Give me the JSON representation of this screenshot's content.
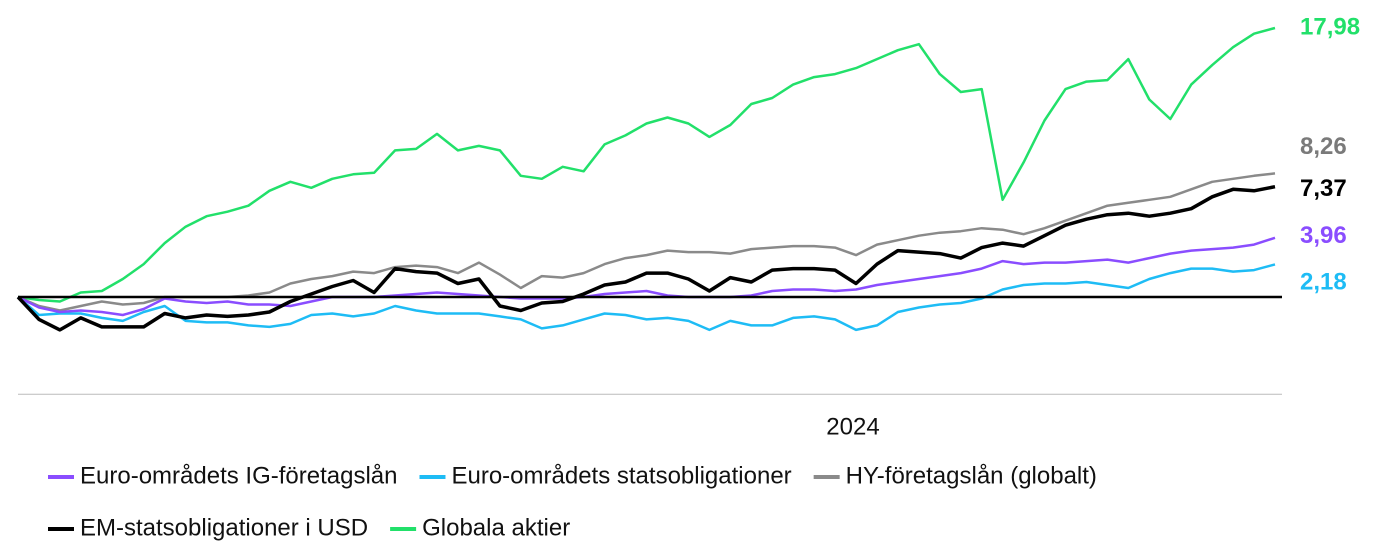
{
  "chart_data": {
    "type": "line",
    "categories": [
      null,
      null,
      null,
      null,
      null,
      null,
      null,
      null,
      null,
      null,
      null,
      null,
      null,
      null,
      null,
      null,
      null,
      null,
      null,
      null,
      null,
      null,
      null,
      null,
      null,
      null,
      null,
      null,
      null,
      null,
      null,
      null,
      null,
      null,
      null,
      null,
      null,
      null,
      null,
      null,
      "2024",
      null,
      null,
      null,
      null,
      null,
      null,
      null,
      null,
      null,
      null,
      null,
      null,
      null,
      null,
      null,
      null,
      null,
      null,
      null,
      null
    ],
    "ylim": [
      -6.5,
      19
    ],
    "series": [
      {
        "name": "Euro-områdets IG-företagslån",
        "color": "#8a4dff",
        "values": [
          0,
          -0.7,
          -1.0,
          -0.9,
          -1.0,
          -1.2,
          -0.8,
          -0.1,
          -0.3,
          -0.4,
          -0.3,
          -0.5,
          -0.5,
          -0.6,
          -0.3,
          0.0,
          0.0,
          0.0,
          0.1,
          0.2,
          0.3,
          0.2,
          0.1,
          0.0,
          -0.1,
          -0.1,
          -0.1,
          0.0,
          0.2,
          0.3,
          0.4,
          0.1,
          0.0,
          0.0,
          0.0,
          0.1,
          0.4,
          0.5,
          0.5,
          0.4,
          0.5,
          0.8,
          1.0,
          1.2,
          1.4,
          1.6,
          1.9,
          2.4,
          2.2,
          2.3,
          2.3,
          2.4,
          2.5,
          2.3,
          2.6,
          2.9,
          3.1,
          3.2,
          3.3,
          3.5,
          3.96
        ],
        "value_labels": [
          null,
          null,
          null,
          null,
          null,
          null,
          null,
          null,
          null,
          null,
          null,
          null,
          null,
          null,
          null,
          null,
          null,
          null,
          null,
          null,
          null,
          null,
          null,
          null,
          null,
          null,
          null,
          null,
          null,
          null,
          null,
          null,
          null,
          null,
          null,
          null,
          null,
          null,
          null,
          null,
          null,
          null,
          null,
          null,
          null,
          null,
          null,
          null,
          null,
          null,
          null,
          null,
          null,
          null,
          null,
          null,
          null,
          null,
          null,
          null,
          "3,96"
        ]
      },
      {
        "name": "Euro-områdets statsobligationer",
        "color": "#1ebcf5",
        "values": [
          0,
          -1.2,
          -1.1,
          -1.1,
          -1.4,
          -1.6,
          -1.0,
          -0.6,
          -1.6,
          -1.7,
          -1.7,
          -1.9,
          -2.0,
          -1.8,
          -1.2,
          -1.1,
          -1.3,
          -1.1,
          -0.6,
          -0.9,
          -1.1,
          -1.1,
          -1.1,
          -1.3,
          -1.5,
          -2.1,
          -1.9,
          -1.5,
          -1.1,
          -1.2,
          -1.5,
          -1.4,
          -1.6,
          -2.2,
          -1.6,
          -1.9,
          -1.9,
          -1.4,
          -1.3,
          -1.5,
          -2.2,
          -1.9,
          -1.0,
          -0.7,
          -0.5,
          -0.4,
          -0.1,
          0.5,
          0.8,
          0.9,
          0.9,
          1.0,
          0.8,
          0.6,
          1.2,
          1.6,
          1.9,
          1.9,
          1.7,
          1.8,
          2.18
        ],
        "value_labels": [
          null,
          null,
          null,
          null,
          null,
          null,
          null,
          null,
          null,
          null,
          null,
          null,
          null,
          null,
          null,
          null,
          null,
          null,
          null,
          null,
          null,
          null,
          null,
          null,
          null,
          null,
          null,
          null,
          null,
          null,
          null,
          null,
          null,
          null,
          null,
          null,
          null,
          null,
          null,
          null,
          null,
          null,
          null,
          null,
          null,
          null,
          null,
          null,
          null,
          null,
          null,
          null,
          null,
          null,
          null,
          null,
          null,
          null,
          null,
          null,
          "2,18"
        ]
      },
      {
        "name": "HY-företagslån (globalt)",
        "color": "#8a8a8a",
        "values": [
          0,
          -0.6,
          -0.9,
          -0.6,
          -0.3,
          -0.5,
          -0.4,
          0,
          0,
          0,
          0,
          0.1,
          0.3,
          0.9,
          1.2,
          1.4,
          1.7,
          1.6,
          2.0,
          2.1,
          2.0,
          1.6,
          2.3,
          1.5,
          0.6,
          1.4,
          1.3,
          1.6,
          2.2,
          2.6,
          2.8,
          3.1,
          3.0,
          3.0,
          2.9,
          3.2,
          3.3,
          3.4,
          3.4,
          3.3,
          2.8,
          3.5,
          3.8,
          4.1,
          4.3,
          4.4,
          4.6,
          4.5,
          4.2,
          4.6,
          5.1,
          5.6,
          6.1,
          6.3,
          6.5,
          6.7,
          7.2,
          7.7,
          7.9,
          8.1,
          8.26
        ],
        "value_labels": [
          null,
          null,
          null,
          null,
          null,
          null,
          null,
          null,
          null,
          null,
          null,
          null,
          null,
          null,
          null,
          null,
          null,
          null,
          null,
          null,
          null,
          null,
          null,
          null,
          null,
          null,
          null,
          null,
          null,
          null,
          null,
          null,
          null,
          null,
          null,
          null,
          null,
          null,
          null,
          null,
          null,
          null,
          null,
          null,
          null,
          null,
          null,
          null,
          null,
          null,
          null,
          null,
          null,
          null,
          null,
          null,
          null,
          null,
          null,
          null,
          "8,26"
        ]
      },
      {
        "name": "EM-statsobligationer i USD",
        "color": "#000000",
        "values": [
          0,
          -1.5,
          -2.2,
          -1.4,
          -2.0,
          -2.0,
          -2.0,
          -1.1,
          -1.4,
          -1.2,
          -1.3,
          -1.2,
          -1.0,
          -0.3,
          0.2,
          0.7,
          1.1,
          0.3,
          1.9,
          1.7,
          1.6,
          0.9,
          1.2,
          -0.6,
          -0.9,
          -0.4,
          -0.3,
          0.2,
          0.8,
          1.0,
          1.6,
          1.6,
          1.2,
          0.4,
          1.3,
          1.0,
          1.8,
          1.9,
          1.9,
          1.8,
          0.9,
          2.2,
          3.1,
          3.0,
          2.9,
          2.6,
          3.3,
          3.6,
          3.4,
          4.1,
          4.8,
          5.2,
          5.5,
          5.6,
          5.4,
          5.6,
          5.9,
          6.7,
          7.2,
          7.1,
          7.37
        ],
        "value_labels": [
          null,
          null,
          null,
          null,
          null,
          null,
          null,
          null,
          null,
          null,
          null,
          null,
          null,
          null,
          null,
          null,
          null,
          null,
          null,
          null,
          null,
          null,
          null,
          null,
          null,
          null,
          null,
          null,
          null,
          null,
          null,
          null,
          null,
          null,
          null,
          null,
          null,
          null,
          null,
          null,
          null,
          null,
          null,
          null,
          null,
          null,
          null,
          null,
          null,
          null,
          null,
          null,
          null,
          null,
          null,
          null,
          null,
          null,
          null,
          null,
          "7,37"
        ]
      },
      {
        "name": "Globala aktier",
        "color": "#22e06a",
        "values": [
          0,
          -0.2,
          -0.3,
          0.3,
          0.4,
          1.2,
          2.2,
          3.6,
          4.7,
          5.4,
          5.7,
          6.1,
          7.1,
          7.7,
          7.3,
          7.9,
          8.2,
          8.3,
          9.8,
          9.9,
          10.9,
          9.8,
          10.1,
          9.8,
          8.1,
          7.9,
          8.7,
          8.4,
          10.2,
          10.8,
          11.6,
          12.0,
          11.6,
          10.7,
          11.5,
          12.9,
          13.3,
          14.2,
          14.7,
          14.9,
          15.3,
          15.9,
          16.5,
          16.9,
          14.9,
          13.7,
          13.9,
          6.5,
          9.0,
          11.8,
          13.9,
          14.4,
          14.5,
          15.9,
          13.2,
          11.9,
          14.2,
          15.5,
          16.7,
          17.6,
          17.98
        ],
        "value_labels": [
          null,
          null,
          null,
          null,
          null,
          null,
          null,
          null,
          null,
          null,
          null,
          null,
          null,
          null,
          null,
          null,
          null,
          null,
          null,
          null,
          null,
          null,
          null,
          null,
          null,
          null,
          null,
          null,
          null,
          null,
          null,
          null,
          null,
          null,
          null,
          null,
          null,
          null,
          null,
          null,
          null,
          null,
          null,
          null,
          null,
          null,
          null,
          null,
          null,
          null,
          null,
          null,
          null,
          null,
          null,
          null,
          null,
          null,
          null,
          null,
          "17,98"
        ]
      }
    ]
  }
}
